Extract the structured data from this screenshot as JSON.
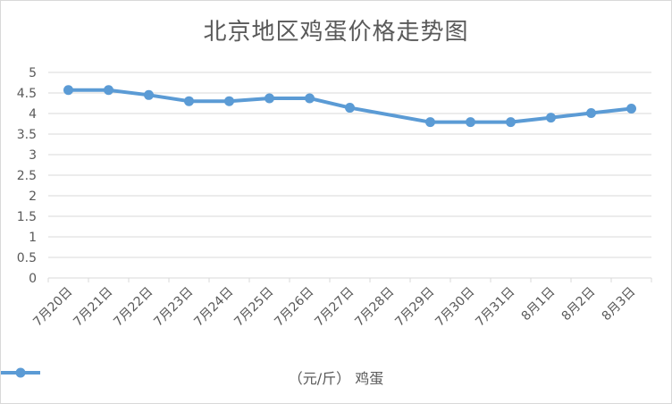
{
  "chart_data": {
    "type": "line",
    "title": "北京地区鸡蛋价格走势图",
    "categories": [
      "7月20日",
      "7月21日",
      "7月22日",
      "7月23日",
      "7月24日",
      "7月25日",
      "7月26日",
      "7月27日",
      "7月28日",
      "7月29日",
      "7月30日",
      "7月31日",
      "8月1日",
      "8月2日",
      "8月3日"
    ],
    "series": [
      {
        "name": "（元/斤） 鸡蛋",
        "values": [
          4.57,
          4.57,
          4.45,
          4.3,
          4.3,
          4.37,
          4.37,
          4.14,
          null,
          3.79,
          3.79,
          3.79,
          3.9,
          4.01,
          4.12
        ]
      }
    ],
    "yticks": [
      "0",
      "0.5",
      "1",
      "1.5",
      "2",
      "2.5",
      "3",
      "3.5",
      "4",
      "4.5",
      "5"
    ],
    "ylim": [
      0,
      5
    ],
    "grid": true,
    "legend": "bottom",
    "colors": {
      "series": "#5b9bd5",
      "grid": "#d9d9d9",
      "text": "#595959"
    }
  }
}
